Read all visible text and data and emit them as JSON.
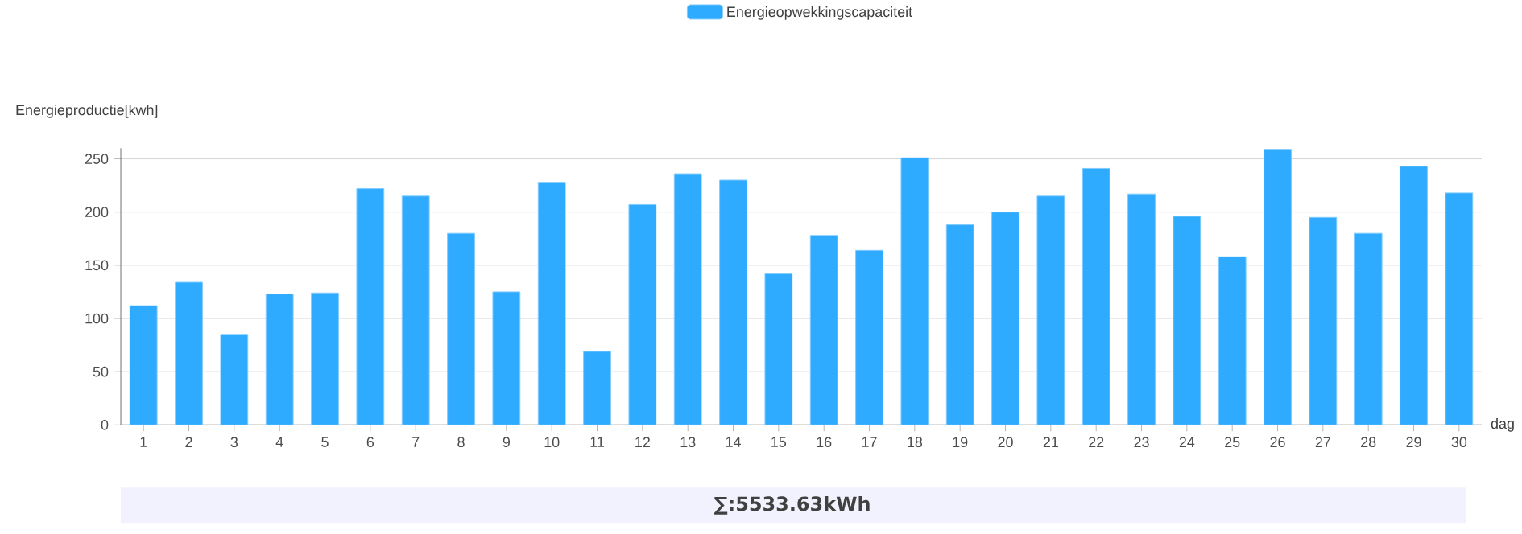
{
  "chart_data": {
    "type": "bar",
    "xlabel": "dag",
    "ylabel": "Energieproductie[kwh]",
    "categories": [
      "1",
      "2",
      "3",
      "4",
      "5",
      "6",
      "7",
      "8",
      "9",
      "10",
      "11",
      "12",
      "13",
      "14",
      "15",
      "16",
      "17",
      "18",
      "19",
      "20",
      "21",
      "22",
      "23",
      "24",
      "25",
      "26",
      "27",
      "28",
      "29",
      "30"
    ],
    "series": [
      {
        "name": "Energieopwekkingscapaciteit",
        "color": "#2eaaff",
        "values": [
          112,
          134,
          85,
          123,
          124,
          222,
          215,
          180,
          125,
          228,
          69,
          207,
          236,
          230,
          142,
          178,
          164,
          251,
          188,
          200,
          215,
          241,
          217,
          196,
          158,
          259,
          195,
          180,
          243,
          218
        ]
      }
    ],
    "ylim": [
      0,
      260
    ],
    "yticks": [
      0,
      50,
      100,
      150,
      200,
      250
    ],
    "grid": "y",
    "legend": "top",
    "annotations": [
      "∑:5533.63kWh"
    ]
  }
}
